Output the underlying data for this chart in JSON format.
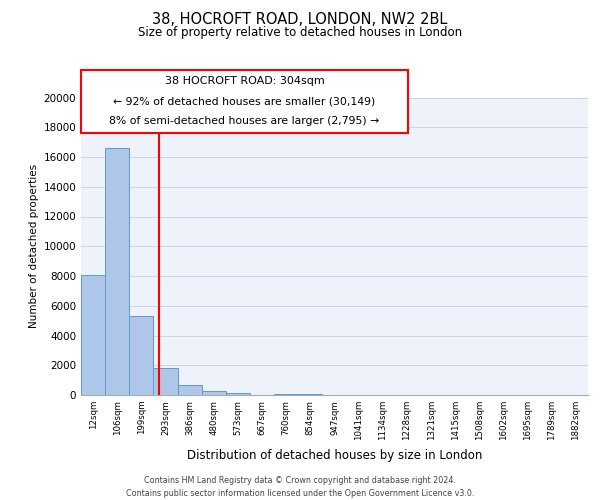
{
  "title": "38, HOCROFT ROAD, LONDON, NW2 2BL",
  "subtitle": "Size of property relative to detached houses in London",
  "xlabel": "Distribution of detached houses by size in London",
  "ylabel": "Number of detached properties",
  "categories": [
    "12sqm",
    "106sqm",
    "199sqm",
    "293sqm",
    "386sqm",
    "480sqm",
    "573sqm",
    "667sqm",
    "760sqm",
    "854sqm",
    "947sqm",
    "1041sqm",
    "1134sqm",
    "1228sqm",
    "1321sqm",
    "1415sqm",
    "1508sqm",
    "1602sqm",
    "1695sqm",
    "1789sqm",
    "1882sqm"
  ],
  "values": [
    8100,
    16600,
    5300,
    1800,
    700,
    300,
    150,
    0,
    100,
    50,
    0,
    0,
    0,
    0,
    0,
    0,
    0,
    0,
    0,
    0,
    0
  ],
  "bar_color": "#aec6e8",
  "bar_edge_color": "#5b9bd5",
  "vline_x": 2.75,
  "vline_color": "red",
  "annotation_box_title": "38 HOCROFT ROAD: 304sqm",
  "annotation_line1": "← 92% of detached houses are smaller (30,149)",
  "annotation_line2": "8% of semi-detached houses are larger (2,795) →",
  "annotation_box_color": "red",
  "ylim": [
    0,
    20000
  ],
  "yticks": [
    0,
    2000,
    4000,
    6000,
    8000,
    10000,
    12000,
    14000,
    16000,
    18000,
    20000
  ],
  "background_color": "#eef2fb",
  "footer_line1": "Contains HM Land Registry data © Crown copyright and database right 2024.",
  "footer_line2": "Contains public sector information licensed under the Open Government Licence v3.0."
}
